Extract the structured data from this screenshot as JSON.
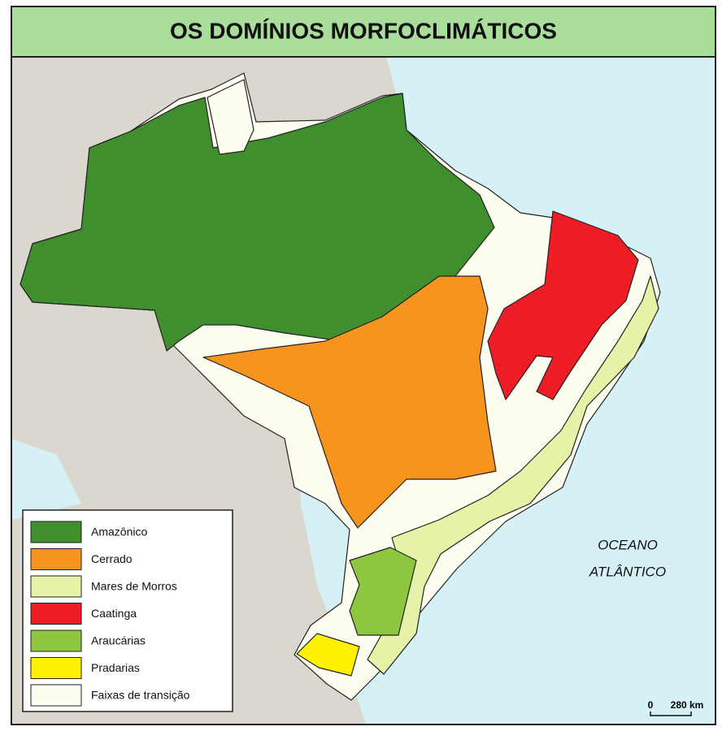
{
  "title": "OS DOMÍNIOS MORFOCLIMÁTICOS",
  "legend": [
    {
      "label": "Amazônico",
      "color": "#3f8f2f"
    },
    {
      "label": "Cerrado",
      "color": "#f7941d"
    },
    {
      "label": "Mares de Morros",
      "color": "#e6f2a8"
    },
    {
      "label": "Caatinga",
      "color": "#ee1c24"
    },
    {
      "label": "Araucárias",
      "color": "#8dc63f"
    },
    {
      "label": "Pradarias",
      "color": "#fff200"
    },
    {
      "label": "Faixas de transição",
      "color": "#fdfdf0"
    }
  ],
  "ocean_label": [
    "OCEANO",
    "ATLÂNTICO"
  ],
  "scale": {
    "labels": [
      "0",
      "280 km"
    ]
  }
}
